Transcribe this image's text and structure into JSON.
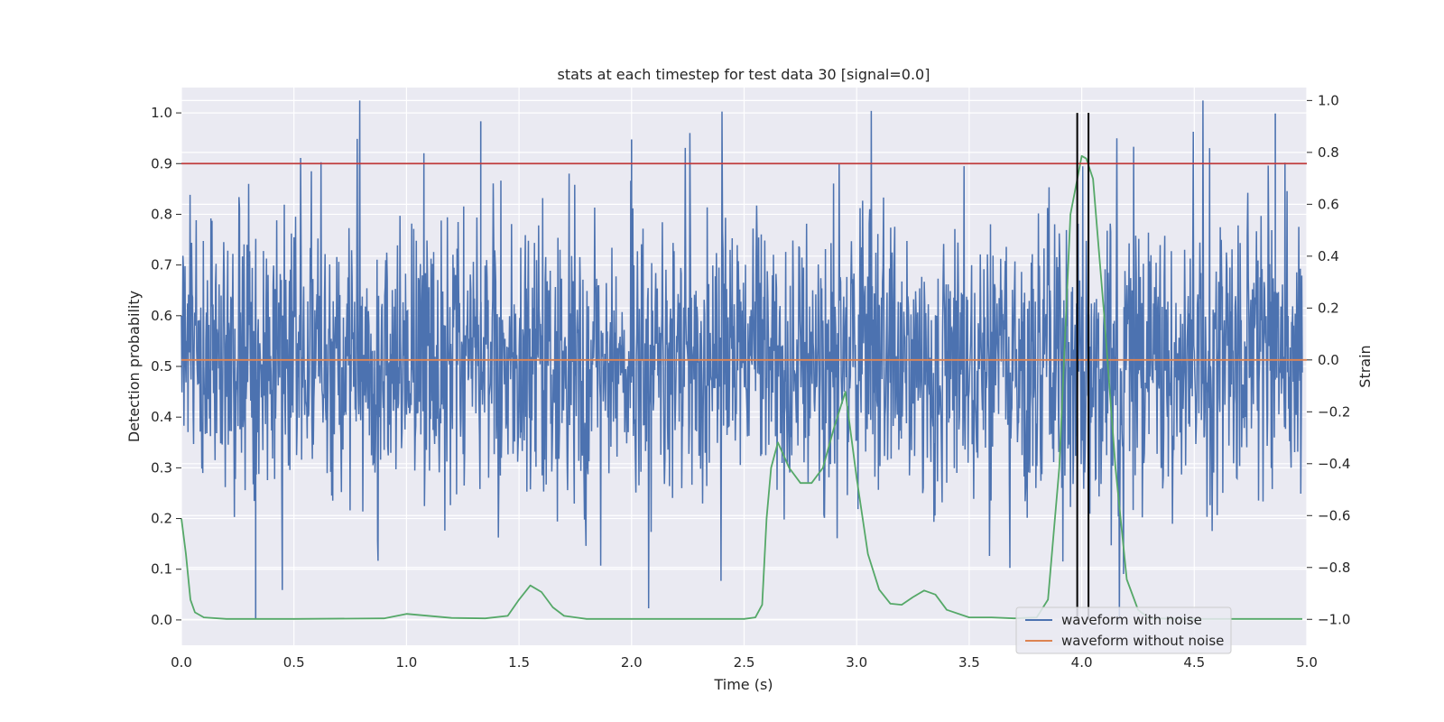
{
  "chart_data": {
    "type": "line",
    "title": "stats at each timestep for test data 30 [signal=0.0]",
    "xlabel": "Time (s)",
    "ylabel_left": "Detection probability",
    "ylabel_right": "Strain",
    "xlim": [
      0.0,
      5.0
    ],
    "ylim_left": [
      -0.05,
      1.05
    ],
    "ylim_right": [
      -1.1,
      1.05
    ],
    "xticks": [
      "0.0",
      "0.5",
      "1.0",
      "1.5",
      "2.0",
      "2.5",
      "3.0",
      "3.5",
      "4.0",
      "4.5",
      "5.0"
    ],
    "yticks_left": [
      "0.0",
      "0.1",
      "0.2",
      "0.3",
      "0.4",
      "0.5",
      "0.6",
      "0.7",
      "0.8",
      "0.9",
      "1.0"
    ],
    "yticks_right": [
      "−1.0",
      "−0.8",
      "−0.6",
      "−0.4",
      "−0.2",
      "0.0",
      "0.2",
      "0.4",
      "0.6",
      "0.8",
      "1.0"
    ],
    "grid": true,
    "threshold": {
      "value": 0.9,
      "color": "#c03d3e"
    },
    "event_markers": {
      "x": [
        3.98,
        4.03
      ],
      "ymin": 0.0,
      "ymax": 1.0,
      "color": "#000000"
    },
    "waveform_without_noise": {
      "strain": 0.0,
      "color": "#dd8452"
    },
    "waveform_with_noise": {
      "color": "#4c72b0",
      "strain_range": [
        -1.0,
        1.0
      ],
      "typical_amplitude": 0.35,
      "notable_peaks": [
        {
          "x": 1.33,
          "strain": 0.92
        },
        {
          "x": 4.86,
          "strain": 0.95
        },
        {
          "x": 0.33,
          "strain": -1.0
        },
        {
          "x": 2.0,
          "strain": 0.85
        }
      ]
    },
    "detection_probability": {
      "color": "#55a868",
      "x": [
        0.0,
        0.02,
        0.04,
        0.06,
        0.1,
        0.2,
        0.5,
        0.9,
        1.0,
        1.05,
        1.2,
        1.35,
        1.45,
        1.5,
        1.55,
        1.6,
        1.65,
        1.7,
        1.8,
        2.0,
        2.3,
        2.5,
        2.55,
        2.58,
        2.6,
        2.62,
        2.65,
        2.7,
        2.75,
        2.8,
        2.85,
        2.9,
        2.95,
        3.0,
        3.05,
        3.1,
        3.15,
        3.2,
        3.25,
        3.3,
        3.35,
        3.4,
        3.5,
        3.6,
        3.7,
        3.8,
        3.85,
        3.9,
        3.95,
        4.0,
        4.02,
        4.05,
        4.1,
        4.15,
        4.2,
        4.25,
        4.3,
        4.5,
        4.8,
        4.98
      ],
      "y": [
        0.2,
        0.13,
        0.04,
        0.015,
        0.005,
        0.002,
        0.002,
        0.003,
        0.012,
        0.01,
        0.004,
        0.003,
        0.008,
        0.04,
        0.068,
        0.055,
        0.025,
        0.008,
        0.002,
        0.002,
        0.002,
        0.002,
        0.005,
        0.03,
        0.2,
        0.3,
        0.35,
        0.3,
        0.27,
        0.27,
        0.3,
        0.38,
        0.45,
        0.28,
        0.13,
        0.06,
        0.032,
        0.03,
        0.045,
        0.058,
        0.05,
        0.02,
        0.005,
        0.005,
        0.003,
        0.005,
        0.04,
        0.3,
        0.8,
        0.915,
        0.91,
        0.87,
        0.6,
        0.3,
        0.08,
        0.02,
        0.003,
        0.002,
        0.002,
        0.002
      ]
    },
    "legend": {
      "position": "lower-right",
      "entries": [
        {
          "label": "waveform with noise",
          "color": "#4c72b0"
        },
        {
          "label": "waveform without noise",
          "color": "#dd8452"
        }
      ]
    }
  }
}
